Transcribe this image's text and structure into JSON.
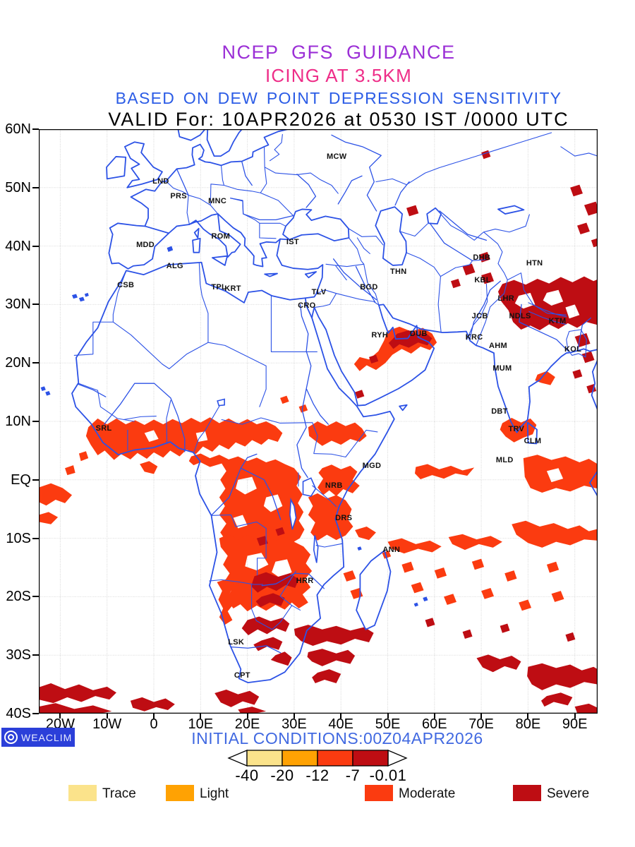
{
  "header": {
    "title_line1": "NCEP GFS GUIDANCE",
    "title_line2": "ICING AT 3.5KM",
    "title_line3": "BASED ON DEW POINT DEPRESSION SENSITIVITY",
    "valid_line": "VALID For: 10APR2026 at 0530 IST /0000 UTC"
  },
  "map": {
    "lat_ticks": [
      {
        "label": "60N",
        "lat": 60
      },
      {
        "label": "50N",
        "lat": 50
      },
      {
        "label": "40N",
        "lat": 40
      },
      {
        "label": "30N",
        "lat": 30
      },
      {
        "label": "20N",
        "lat": 20
      },
      {
        "label": "10N",
        "lat": 10
      },
      {
        "label": "EQ",
        "lat": 0
      },
      {
        "label": "10S",
        "lat": -10
      },
      {
        "label": "20S",
        "lat": -20
      },
      {
        "label": "30S",
        "lat": -30
      },
      {
        "label": "40S",
        "lat": -40
      }
    ],
    "lon_ticks": [
      {
        "label": "20W",
        "lon": -20
      },
      {
        "label": "10W",
        "lon": -10
      },
      {
        "label": "0",
        "lon": 0
      },
      {
        "label": "10E",
        "lon": 10
      },
      {
        "label": "20E",
        "lon": 20
      },
      {
        "label": "30E",
        "lon": 30
      },
      {
        "label": "40E",
        "lon": 40
      },
      {
        "label": "50E",
        "lon": 50
      },
      {
        "label": "60E",
        "lon": 60
      },
      {
        "label": "70E",
        "lon": 70
      },
      {
        "label": "80E",
        "lon": 80
      },
      {
        "label": "90E",
        "lon": 90
      }
    ],
    "stations": [
      {
        "code": "MCW",
        "lon": 39.1,
        "lat": 55.3
      },
      {
        "code": "LND",
        "lon": 1.5,
        "lat": 51.1
      },
      {
        "code": "PRS",
        "lon": 5.3,
        "lat": 48.5
      },
      {
        "code": "MNC",
        "lon": 13.6,
        "lat": 47.7
      },
      {
        "code": "ROM",
        "lon": 14.3,
        "lat": 41.6
      },
      {
        "code": "IST",
        "lon": 29.7,
        "lat": 40.7
      },
      {
        "code": "MDD",
        "lon": -1.8,
        "lat": 40.2
      },
      {
        "code": "ALG",
        "lon": 4.5,
        "lat": 36.6
      },
      {
        "code": "CSB",
        "lon": -6.0,
        "lat": 33.3
      },
      {
        "code": "TPL",
        "lon": 13.9,
        "lat": 32.9
      },
      {
        "code": "KRT",
        "lon": 16.9,
        "lat": 32.7
      },
      {
        "code": "CRO",
        "lon": 32.7,
        "lat": 29.8
      },
      {
        "code": "TLV",
        "lon": 35.3,
        "lat": 32.1
      },
      {
        "code": "BGD",
        "lon": 46.0,
        "lat": 32.9
      },
      {
        "code": "THN",
        "lon": 52.3,
        "lat": 35.6
      },
      {
        "code": "RYH",
        "lon": 48.3,
        "lat": 24.7
      },
      {
        "code": "DUB",
        "lon": 56.6,
        "lat": 25.0
      },
      {
        "code": "DHB",
        "lon": 70.1,
        "lat": 38.0
      },
      {
        "code": "KBL",
        "lon": 70.3,
        "lat": 34.2
      },
      {
        "code": "HTN",
        "lon": 81.4,
        "lat": 37.1
      },
      {
        "code": "LHR",
        "lon": 75.3,
        "lat": 31.0
      },
      {
        "code": "JCB",
        "lon": 69.7,
        "lat": 28.0
      },
      {
        "code": "NDLS",
        "lon": 78.3,
        "lat": 28.0
      },
      {
        "code": "KTM",
        "lon": 86.3,
        "lat": 27.2
      },
      {
        "code": "KRC",
        "lon": 68.5,
        "lat": 24.4
      },
      {
        "code": "AHM",
        "lon": 73.6,
        "lat": 22.9
      },
      {
        "code": "KOL",
        "lon": 89.6,
        "lat": 22.3
      },
      {
        "code": "MUM",
        "lon": 74.5,
        "lat": 19.1
      },
      {
        "code": "DBT",
        "lon": 73.9,
        "lat": 11.7
      },
      {
        "code": "TRV",
        "lon": 77.5,
        "lat": 8.7
      },
      {
        "code": "CLM",
        "lon": 81.0,
        "lat": 6.6
      },
      {
        "code": "MLD",
        "lon": 75.0,
        "lat": 3.4
      },
      {
        "code": "SRL",
        "lon": -10.7,
        "lat": 8.8
      },
      {
        "code": "MGD",
        "lon": 46.6,
        "lat": 2.4
      },
      {
        "code": "NRB",
        "lon": 38.5,
        "lat": -1.0
      },
      {
        "code": "DRS",
        "lon": 40.6,
        "lat": -6.6
      },
      {
        "code": "ANN",
        "lon": 50.8,
        "lat": -12.0
      },
      {
        "code": "HRR",
        "lon": 32.3,
        "lat": -17.3
      },
      {
        "code": "LSK",
        "lon": 17.6,
        "lat": -27.8
      },
      {
        "code": "CPT",
        "lon": 18.9,
        "lat": -33.5
      }
    ]
  },
  "footer": {
    "logo_text": "WEACLIM",
    "initial_conditions": "INITIAL CONDITIONS:00Z04APR2026",
    "scale_values": [
      "-40",
      "-20",
      "-12",
      "-7",
      "-0.01"
    ],
    "legend": [
      {
        "label": "Trace",
        "color": "#FBE38B"
      },
      {
        "label": "Light",
        "color": "#FFA203"
      },
      {
        "label": "Moderate",
        "color": "#FB3B10"
      },
      {
        "label": "Severe",
        "color": "#BE0D13"
      }
    ]
  },
  "colors": {
    "title1": "#9B2FD6",
    "title2": "#EE2D88",
    "title3": "#2B5CE6",
    "valid": "#000000",
    "coast": "#2C52E6",
    "grid": "#C2C2C2",
    "initial": "#4169E1",
    "logo_bg": "#2B3FD9",
    "moderate": "#FB3B10",
    "severe": "#BE0D13"
  }
}
